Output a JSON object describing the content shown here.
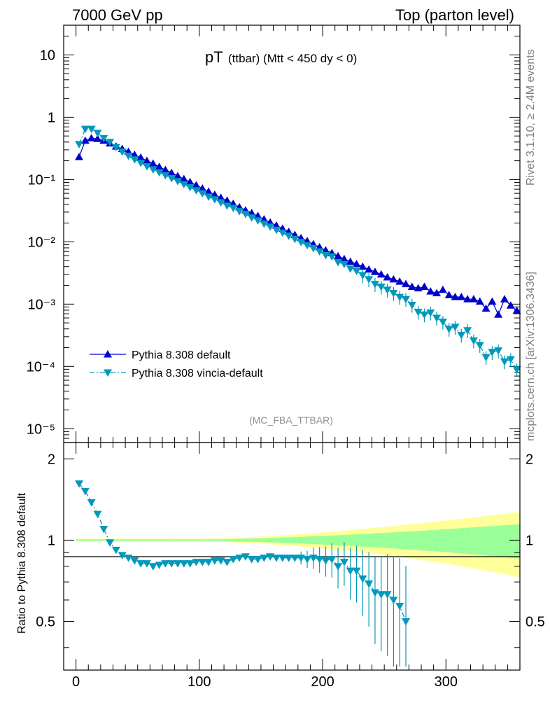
{
  "header": {
    "left": "7000 GeV pp",
    "right": "Top (parton level)"
  },
  "plot_title": {
    "main": "pT",
    "sub": "(ttbar) (Mtt < 450 dy < 0)"
  },
  "side_labels": {
    "rivet": "Rivet 3.1.10, ≥ 2.4M events",
    "mcplots": "mcplots.cern.ch [arXiv:1306.3436]"
  },
  "analysis_tag": "(MC_FBA_TTBAR)",
  "ratio_ylabel": "Ratio to Pythia 8.308 default",
  "legend": [
    {
      "label": "Pythia 8.308 default",
      "color": "#0000cc",
      "marker": "triangle-up",
      "style": "solid"
    },
    {
      "label": "Pythia 8.308 vincia-default",
      "color": "#0099bb",
      "marker": "triangle-down",
      "style": "dashdot"
    }
  ],
  "chart_data": [
    {
      "type": "line",
      "log_y": true,
      "xlim": [
        -10,
        360
      ],
      "ylim": [
        6e-06,
        30
      ],
      "y_tick_labels": [
        "10",
        "1",
        "10⁻¹",
        "10⁻²",
        "10⁻³",
        "10⁻⁴",
        "10⁻⁵"
      ],
      "x": [
        2.5,
        7.5,
        12.5,
        17.5,
        22.5,
        27.5,
        32.5,
        37.5,
        42.5,
        47.5,
        52.5,
        57.5,
        62.5,
        67.5,
        72.5,
        77.5,
        82.5,
        87.5,
        92.5,
        97.5,
        102.5,
        107.5,
        112.5,
        117.5,
        122.5,
        127.5,
        132.5,
        137.5,
        142.5,
        147.5,
        152.5,
        157.5,
        162.5,
        167.5,
        172.5,
        177.5,
        182.5,
        187.5,
        192.5,
        197.5,
        202.5,
        207.5,
        212.5,
        217.5,
        222.5,
        227.5,
        232.5,
        237.5,
        242.5,
        247.5,
        252.5,
        257.5,
        262.5,
        267.5,
        272.5,
        277.5,
        282.5,
        287.5,
        292.5,
        297.5,
        302.5,
        307.5,
        312.5,
        317.5,
        322.5,
        327.5,
        332.5,
        337.5,
        342.5,
        347.5,
        352.5,
        357.5
      ],
      "series": [
        {
          "name": "Pythia 8.308 default",
          "values": [
            0.23,
            0.42,
            0.46,
            0.45,
            0.42,
            0.38,
            0.34,
            0.31,
            0.28,
            0.25,
            0.225,
            0.2,
            0.18,
            0.16,
            0.143,
            0.128,
            0.114,
            0.102,
            0.091,
            0.081,
            0.072,
            0.064,
            0.057,
            0.051,
            0.046,
            0.041,
            0.036,
            0.032,
            0.029,
            0.026,
            0.023,
            0.0205,
            0.0183,
            0.0163,
            0.0145,
            0.0129,
            0.0115,
            0.0103,
            0.0092,
            0.0082,
            0.0073,
            0.0066,
            0.0059,
            0.0053,
            0.0048,
            0.0044,
            0.004,
            0.0036,
            0.0033,
            0.003,
            0.0027,
            0.0025,
            0.0023,
            0.0021,
            0.0019,
            0.0018,
            0.0019,
            0.0016,
            0.0015,
            0.0017,
            0.0014,
            0.0013,
            0.0013,
            0.0012,
            0.0012,
            0.0011,
            0.00085,
            0.0011,
            0.00068,
            0.0012,
            0.00095,
            0.00078
          ]
        },
        {
          "name": "Pythia 8.308 vincia-default",
          "values": [
            0.37,
            0.65,
            0.65,
            0.56,
            0.46,
            0.4,
            0.33,
            0.28,
            0.24,
            0.21,
            0.185,
            0.163,
            0.145,
            0.13,
            0.117,
            0.105,
            0.094,
            0.084,
            0.075,
            0.067,
            0.06,
            0.053,
            0.048,
            0.043,
            0.038,
            0.035,
            0.031,
            0.028,
            0.0245,
            0.022,
            0.0195,
            0.0175,
            0.0155,
            0.014,
            0.0125,
            0.0111,
            0.0099,
            0.0088,
            0.0079,
            0.007,
            0.0061,
            0.0058,
            0.0047,
            0.0044,
            0.0037,
            0.0034,
            0.0029,
            0.0025,
            0.0021,
            0.0019,
            0.0017,
            0.0015,
            0.0013,
            0.0012,
            0.00097,
            0.00075,
            0.00068,
            0.00073,
            0.0006,
            0.00052,
            0.0004,
            0.00043,
            0.00032,
            0.00038,
            0.00026,
            0.00022,
            0.00014,
            0.00017,
            0.00018,
            0.00012,
            0.00013,
            8.9e-05
          ]
        }
      ]
    },
    {
      "type": "line",
      "xlim": [
        -10,
        360
      ],
      "ylim": [
        0.33,
        2.3
      ],
      "x_tick_labels": [
        "0",
        "100",
        "200",
        "300"
      ],
      "y_tick_labels": [
        "2",
        "1",
        "0.5"
      ],
      "reference_line": 1.0,
      "x": [
        2.5,
        7.5,
        12.5,
        17.5,
        22.5,
        27.5,
        32.5,
        37.5,
        42.5,
        47.5,
        52.5,
        57.5,
        62.5,
        67.5,
        72.5,
        77.5,
        82.5,
        87.5,
        92.5,
        97.5,
        102.5,
        107.5,
        112.5,
        117.5,
        122.5,
        127.5,
        132.5,
        137.5,
        142.5,
        147.5,
        152.5,
        157.5,
        162.5,
        167.5,
        172.5,
        177.5,
        182.5,
        187.5,
        192.5,
        197.5,
        202.5,
        207.5,
        212.5,
        217.5,
        222.5,
        227.5,
        232.5,
        237.5,
        242.5,
        247.5,
        252.5,
        257.5,
        262.5,
        267.5
      ],
      "series": [
        {
          "name": "Pythia 8.308 vincia-default",
          "values": [
            1.62,
            1.52,
            1.38,
            1.25,
            1.1,
            0.98,
            0.92,
            0.88,
            0.86,
            0.84,
            0.82,
            0.82,
            0.8,
            0.81,
            0.82,
            0.82,
            0.82,
            0.82,
            0.82,
            0.83,
            0.83,
            0.83,
            0.84,
            0.84,
            0.83,
            0.85,
            0.86,
            0.87,
            0.85,
            0.85,
            0.86,
            0.87,
            0.86,
            0.86,
            0.86,
            0.86,
            0.86,
            0.85,
            0.86,
            0.85,
            0.84,
            0.85,
            0.8,
            0.83,
            0.77,
            0.77,
            0.72,
            0.69,
            0.64,
            0.63,
            0.63,
            0.6,
            0.57,
            0.5
          ]
        }
      ]
    }
  ]
}
